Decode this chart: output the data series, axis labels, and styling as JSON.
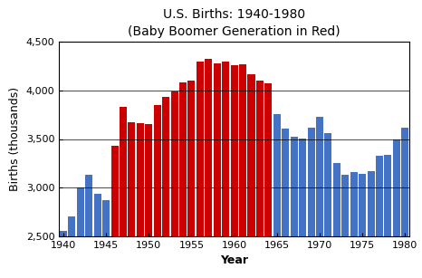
{
  "title": "U.S. Births: 1940-1980",
  "subtitle": "(Baby Boomer Generation in Red)",
  "xlabel": "Year",
  "ylabel": "Births (thousands)",
  "years": [
    1940,
    1941,
    1942,
    1943,
    1944,
    1945,
    1946,
    1947,
    1948,
    1949,
    1950,
    1951,
    1952,
    1953,
    1954,
    1955,
    1956,
    1957,
    1958,
    1959,
    1960,
    1961,
    1962,
    1963,
    1964,
    1965,
    1966,
    1967,
    1968,
    1969,
    1970,
    1971,
    1972,
    1973,
    1974,
    1975,
    1976,
    1977,
    1978,
    1979,
    1980
  ],
  "births": [
    2559,
    2703,
    3003,
    3135,
    2939,
    2873,
    3426,
    3834,
    3670,
    3667,
    3657,
    3845,
    3933,
    3989,
    4078,
    4104,
    4295,
    4320,
    4275,
    4295,
    4258,
    4268,
    4167,
    4098,
    4070,
    3760,
    3606,
    3521,
    3502,
    3614,
    3731,
    3556,
    3258,
    3137,
    3160,
    3144,
    3168,
    3327,
    3333,
    3494,
    3612
  ],
  "baby_boomer_start": 1946,
  "baby_boomer_end": 1964,
  "bar_color_red": "#CC0000",
  "bar_color_blue": "#4472C4",
  "ylim": [
    2500,
    4500
  ],
  "yticks": [
    2500,
    3000,
    3500,
    4000,
    4500
  ],
  "xticks": [
    1940,
    1945,
    1950,
    1955,
    1960,
    1965,
    1970,
    1975,
    1980
  ],
  "grid_color": "#000000",
  "background_color": "#FFFFFF",
  "title_fontsize": 10,
  "subtitle_fontsize": 9,
  "axis_label_fontsize": 9,
  "tick_fontsize": 8
}
